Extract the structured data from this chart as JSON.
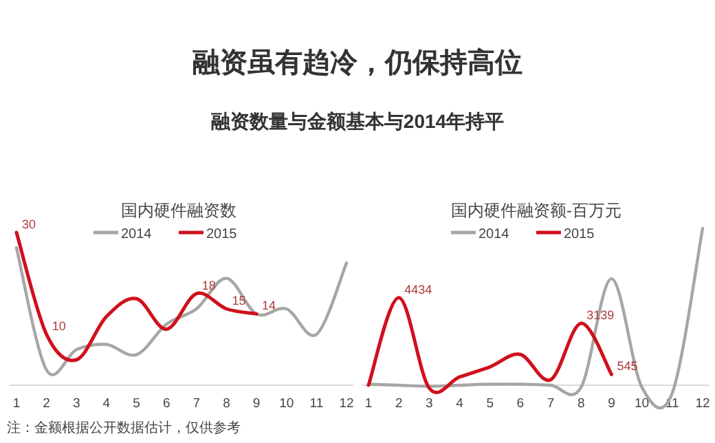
{
  "chart_data": [
    {
      "type": "line",
      "title": "国内硬件融资数",
      "annotations": [
        "融资虽有趋冷，仍保持高位",
        "融资数量与金额基本与2014年持平",
        "注：金额根据公开数据估计，仅供参考"
      ],
      "categories": [
        "1",
        "2",
        "3",
        "4",
        "5",
        "6",
        "7",
        "8",
        "9",
        "10",
        "11",
        "12"
      ],
      "tick_labels": "x",
      "legend": "top",
      "marker": "none",
      "line_style": "solid",
      "series": [
        {
          "name": "2014",
          "color": "#a6a6a6",
          "values": [
            27,
            3,
            7,
            8,
            6,
            12,
            15,
            21,
            14,
            15,
            10,
            24
          ]
        },
        {
          "name": "2015",
          "color": "#d0101c",
          "values": [
            30,
            10,
            5,
            13.5,
            17,
            11,
            18,
            15,
            14,
            null,
            null,
            null
          ],
          "value_labels": [
            "30",
            "10",
            null,
            null,
            null,
            null,
            "18",
            "15",
            "14",
            null,
            null,
            null
          ]
        }
      ]
    },
    {
      "type": "line",
      "title": "国内硬件融资额-百万元",
      "categories": [
        "1",
        "2",
        "3",
        "4",
        "5",
        "6",
        "7",
        "8",
        "9",
        "10",
        "11",
        "12"
      ],
      "tick_labels": "x",
      "legend": "top",
      "marker": "none",
      "line_style": "solid",
      "series": [
        {
          "name": "2014",
          "color": "#a6a6a6",
          "values": [
            50,
            0,
            -50,
            0,
            50,
            50,
            0,
            -100,
            5400,
            -100,
            -400,
            7950
          ]
        },
        {
          "name": "2015",
          "color": "#d0101c",
          "values": [
            0,
            4434,
            -150,
            420,
            930,
            1560,
            280,
            3139,
            545,
            null,
            null,
            null
          ],
          "value_labels": [
            null,
            "4434",
            null,
            null,
            null,
            null,
            null,
            "3139",
            "545",
            null,
            null,
            null
          ]
        }
      ]
    }
  ]
}
